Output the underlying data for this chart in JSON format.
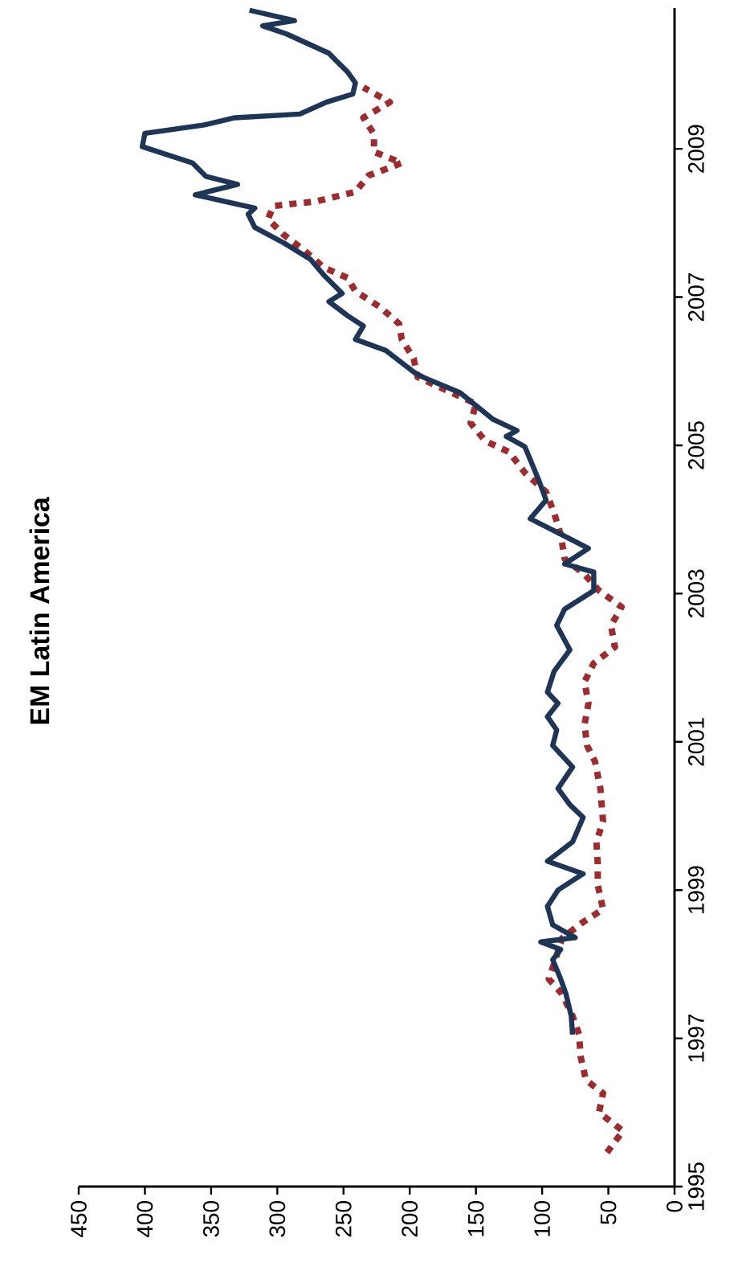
{
  "chart_data": {
    "type": "line",
    "title": "EM Latin America",
    "orientation": "horizontal",
    "xlim": [
      450,
      0
    ],
    "ylim": [
      1995,
      2010.9
    ],
    "xticks": [
      0,
      50,
      100,
      150,
      200,
      250,
      300,
      350,
      400,
      450
    ],
    "yticks": [
      1995,
      1997,
      1999,
      2001,
      2003,
      2005,
      2007,
      2009
    ],
    "marker": "none",
    "series": [
      {
        "color": "#9b2d30",
        "line_style": "dotted",
        "x": [
          1995.46,
          1995.75,
          1996.0,
          1996.26,
          1996.44,
          1996.76,
          1997.05,
          1997.3,
          1997.6,
          1997.8,
          1998.06,
          1998.35,
          1998.57,
          1998.74,
          1999.07,
          1999.36,
          1999.65,
          1999.93,
          2000.37,
          2000.73,
          2000.95,
          2001.23,
          2001.52,
          2001.81,
          2002.06,
          2002.28,
          2002.57,
          2002.82,
          2003.04,
          2003.26,
          2003.47,
          2003.8,
          2004.09,
          2004.37,
          2004.63,
          2004.91,
          2005.06,
          2005.3,
          2005.56,
          2005.74,
          2005.92,
          2006.17,
          2006.43,
          2006.64,
          2006.86,
          2007.08,
          2007.26,
          2007.4,
          2007.62,
          2007.84,
          2008.05,
          2008.23,
          2008.29,
          2008.42,
          2008.64,
          2008.81,
          2008.96,
          2009.2,
          2009.42,
          2009.63,
          2009.83
        ],
        "values": [
          51,
          39,
          57,
          54,
          67,
          71,
          72,
          77,
          85,
          95,
          90,
          85,
          69,
          54,
          58,
          58,
          59,
          54,
          56,
          60,
          66,
          68,
          65,
          68,
          61,
          45,
          48,
          40,
          57,
          68,
          83,
          86,
          91,
          97,
          113,
          125,
          143,
          154,
          150,
          172,
          194,
          197,
          206,
          208,
          222,
          241,
          247,
          265,
          279,
          295,
          307,
          303,
          271,
          241,
          231,
          206,
          227,
          227,
          235,
          215,
          235
        ]
      },
      {
        "color": "#1f3556",
        "line_style": "solid",
        "x": [
          1997.05,
          1997.3,
          1997.6,
          1997.8,
          1998.06,
          1998.2,
          1998.3,
          1998.36,
          1998.53,
          1998.78,
          1999.0,
          1999.22,
          1999.39,
          1999.65,
          1999.98,
          2000.15,
          2000.37,
          2000.66,
          2000.95,
          2001.16,
          2001.34,
          2001.52,
          2001.67,
          2001.95,
          2002.24,
          2002.57,
          2002.79,
          2003.04,
          2003.29,
          2003.4,
          2003.61,
          2003.83,
          2004.01,
          2004.26,
          2004.55,
          2004.98,
          2005.12,
          2005.2,
          2005.35,
          2005.71,
          2005.92,
          2005.99,
          2006.28,
          2006.43,
          2006.61,
          2006.75,
          2006.94,
          2007.05,
          2007.3,
          2007.51,
          2007.73,
          2007.94,
          2008.12,
          2008.2,
          2008.38,
          2008.52,
          2008.63,
          2008.81,
          2009.03,
          2009.21,
          2009.32,
          2009.42,
          2009.47,
          2009.63,
          2009.74,
          2009.89,
          2010.04,
          2010.18,
          2010.29,
          2010.55,
          2010.66,
          2010.73,
          2010.87
        ],
        "values": [
          77,
          78,
          82,
          86,
          92,
          86,
          101,
          75,
          92,
          96,
          88,
          69,
          96,
          77,
          69,
          79,
          88,
          77,
          92,
          89,
          96,
          88,
          96,
          91,
          79,
          89,
          83,
          61,
          61,
          83,
          65,
          89,
          109,
          97,
          103,
          113,
          127,
          119,
          137,
          162,
          190,
          197,
          218,
          241,
          235,
          247,
          261,
          251,
          265,
          275,
          295,
          317,
          322,
          317,
          362,
          330,
          354,
          364,
          402,
          400,
          356,
          332,
          283,
          263,
          243,
          241,
          247,
          255,
          261,
          293,
          311,
          287,
          321
        ]
      }
    ]
  }
}
